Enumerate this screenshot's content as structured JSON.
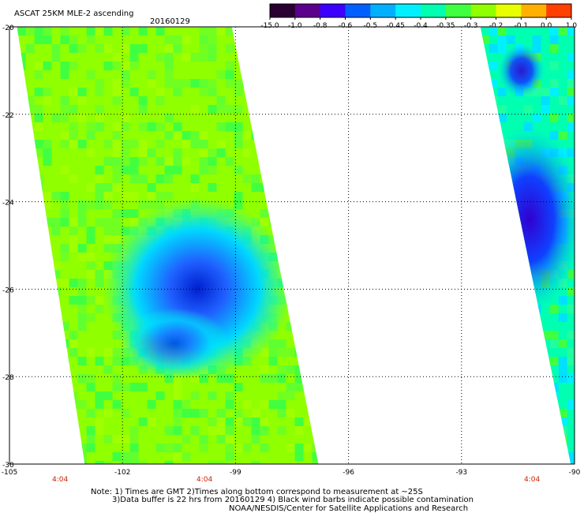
{
  "header": {
    "title": "ASCAT 25KM MLE-2 ascending",
    "date": "20160129"
  },
  "colorbar": {
    "labels": [
      "-15.0",
      "-1.0",
      "-0.8",
      "-0.6",
      "-0.5",
      "-0.45",
      "-0.4",
      "-0.35",
      "-0.3",
      "-0.2",
      "-0.1",
      "0.0",
      "1.0"
    ],
    "colors": [
      "#2a0030",
      "#5a008c",
      "#3c00ff",
      "#0060ff",
      "#00b0ff",
      "#00f0ff",
      "#00ffb0",
      "#40ff40",
      "#90ff00",
      "#e8ff00",
      "#ffb000",
      "#ff4000"
    ]
  },
  "times": [
    "4:04",
    "4:04",
    "4:04"
  ],
  "notes": [
    "Note: 1) Times are GMT 2)Times along bottom correspond to measurement at ~25S",
    "3)Data buffer is 22 hrs from 20160129 4) Black wind barbs indicate possible contamination",
    "NOAA/NESDIS/Center for Satellite Applications and Research"
  ],
  "chart_data": {
    "type": "heatmap",
    "title": "ASCAT 25KM MLE-2 ascending",
    "subtitle": "20160129",
    "xlabel": "",
    "ylabel": "",
    "xlim": [
      -105,
      -90
    ],
    "ylim": [
      -30,
      -20
    ],
    "x_ticks": [
      "-105",
      "-102",
      "-99",
      "-96",
      "-93",
      "-90"
    ],
    "y_ticks": [
      "-20",
      "-22",
      "-24",
      "-26",
      "-28",
      "-30"
    ],
    "grid": true,
    "value_scale": [
      "-15.0",
      "-1.0",
      "-0.8",
      "-0.6",
      "-0.5",
      "-0.45",
      "-0.4",
      "-0.35",
      "-0.3",
      "-0.2",
      "-0.1",
      "0.0",
      "1.0"
    ],
    "swaths": [
      {
        "name": "",
        "lon_at_lat_minus20": [
          -104.8,
          -99.1
        ],
        "lon_at_lat_minus30": [
          -103.0,
          -96.8
        ],
        "typical_value": -0.3,
        "low_value_center": {
          "lon": -100.0,
          "lat": -25.8,
          "value": -0.6
        }
      },
      {
        "name": "",
        "lon_at_lat_minus20": [
          -92.5,
          -90
        ],
        "lon_at_lat_minus30": [
          -90.1,
          -90
        ],
        "typical_value": -0.4,
        "low_value_center": {
          "lon": -91.2,
          "lat": -24.4,
          "value": -0.8
        }
      }
    ]
  }
}
